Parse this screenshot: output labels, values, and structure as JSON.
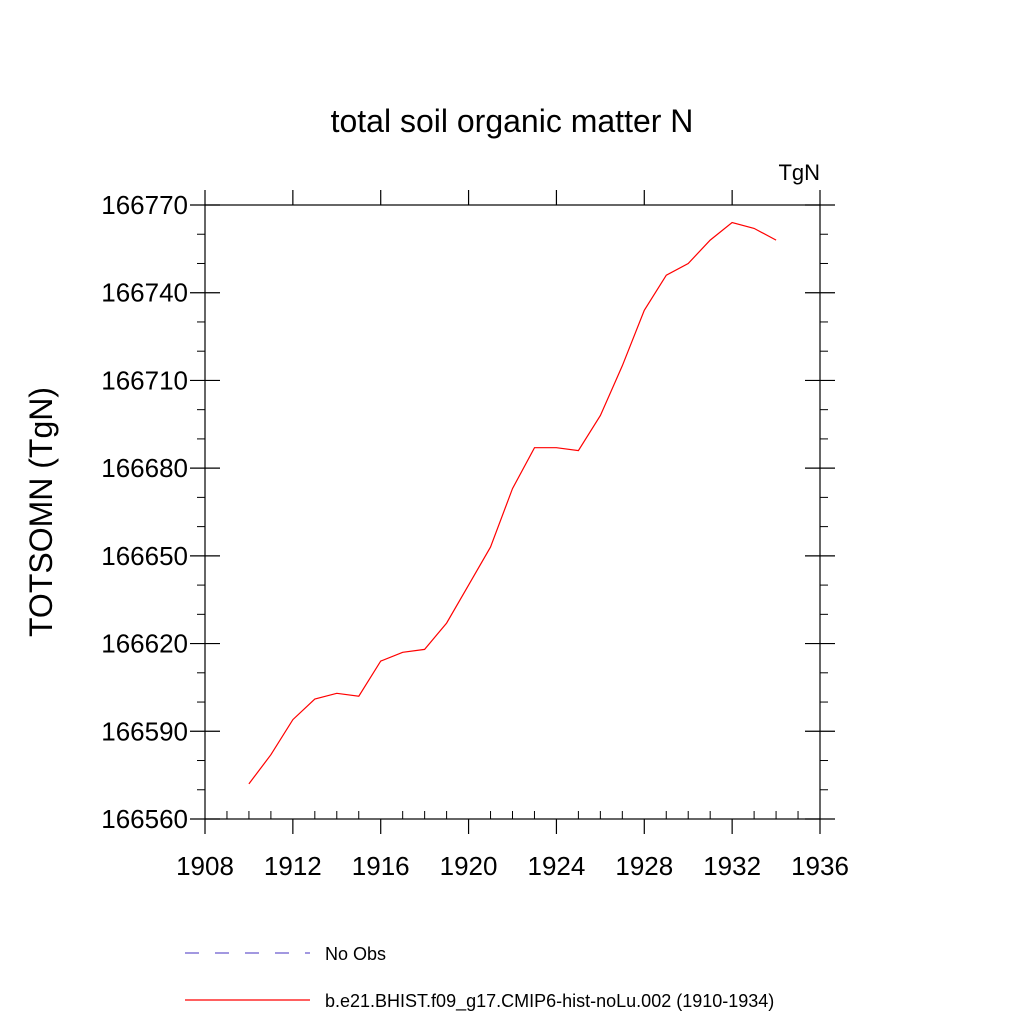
{
  "chart_data": {
    "type": "line",
    "title": "total soil organic matter N",
    "units_label": "TgN",
    "xlabel": "",
    "ylabel": "TOTSOMN  (TgN)",
    "xlim": [
      1908,
      1936
    ],
    "ylim": [
      166560,
      166770
    ],
    "x_ticks": [
      1908,
      1912,
      1916,
      1920,
      1924,
      1928,
      1932,
      1936
    ],
    "y_ticks": [
      166560,
      166590,
      166620,
      166650,
      166680,
      166710,
      166740,
      166770
    ],
    "x_minor_step": 1,
    "y_minor_step": 10,
    "grid": false,
    "legend_position": "bottom",
    "series": [
      {
        "name": "b.e21.BHIST.f09_g17.CMIP6-hist-noLu.002 (1910-1934)",
        "color": "#ff0000",
        "style": "solid",
        "x": [
          1910,
          1911,
          1912,
          1913,
          1914,
          1915,
          1916,
          1917,
          1918,
          1919,
          1920,
          1921,
          1922,
          1923,
          1924,
          1925,
          1926,
          1927,
          1928,
          1929,
          1930,
          1931,
          1932,
          1933,
          1934
        ],
        "y": [
          166572,
          166582,
          166594,
          166601,
          166603,
          166602,
          166614,
          166617,
          166618,
          166627,
          166640,
          166653,
          166673,
          166687,
          166687,
          166686,
          166698,
          166715,
          166734,
          166746,
          166750,
          166758,
          166764,
          166762,
          166758
        ]
      }
    ],
    "legend": [
      {
        "label": "No Obs",
        "color": "#6a5acd",
        "style": "dashed"
      },
      {
        "label": "b.e21.BHIST.f09_g17.CMIP6-hist-noLu.002 (1910-1934)",
        "color": "#ff0000",
        "style": "solid"
      }
    ]
  }
}
